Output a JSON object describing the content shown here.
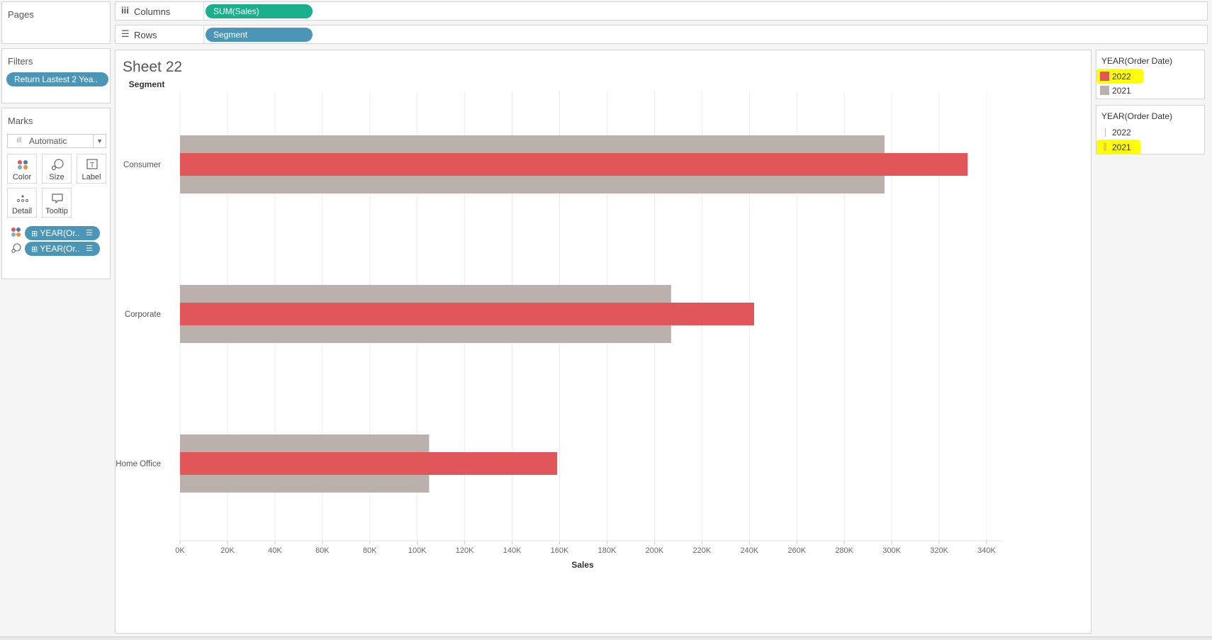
{
  "left": {
    "pages_title": "Pages",
    "filters_title": "Filters",
    "filter_pill": "Return Lastest 2 Yea..",
    "marks_title": "Marks",
    "mark_type": "Automatic",
    "buttons": {
      "color": "Color",
      "size": "Size",
      "label": "Label",
      "detail": "Detail",
      "tooltip": "Tooltip"
    },
    "field_pill_1": "YEAR(Or..",
    "field_pill_2": "YEAR(Or.."
  },
  "shelves": {
    "columns_label": "Columns",
    "columns_pill": "SUM(Sales)",
    "rows_label": "Rows",
    "rows_pill": "Segment"
  },
  "sheet": {
    "title": "Sheet 22",
    "row_header": "Segment"
  },
  "legends": {
    "color_title": "YEAR(Order Date)",
    "color_items": [
      "2022",
      "2021"
    ],
    "size_title": "YEAR(Order Date)",
    "size_items": [
      "2022",
      "2021"
    ]
  },
  "colors": {
    "accent_2022": "#e15759",
    "base_2021": "#bab0ac",
    "green_pill": "#19b08b",
    "blue_pill": "#4b96b6",
    "highlight": "#ffff00"
  },
  "chart_data": {
    "type": "bar",
    "orientation": "horizontal",
    "categories": [
      "Consumer",
      "Corporate",
      "Home Office"
    ],
    "series": [
      {
        "name": "2021",
        "values": [
          297000,
          207000,
          105000
        ]
      },
      {
        "name": "2022",
        "values": [
          332000,
          242000,
          159000
        ]
      }
    ],
    "xlabel": "Sales",
    "ylabel": "Segment",
    "xlim": [
      0,
      350000
    ],
    "xticks": [
      "0K",
      "20K",
      "40K",
      "60K",
      "80K",
      "100K",
      "120K",
      "140K",
      "160K",
      "180K",
      "200K",
      "220K",
      "240K",
      "260K",
      "280K",
      "300K",
      "320K",
      "340K"
    ],
    "grid": true
  }
}
